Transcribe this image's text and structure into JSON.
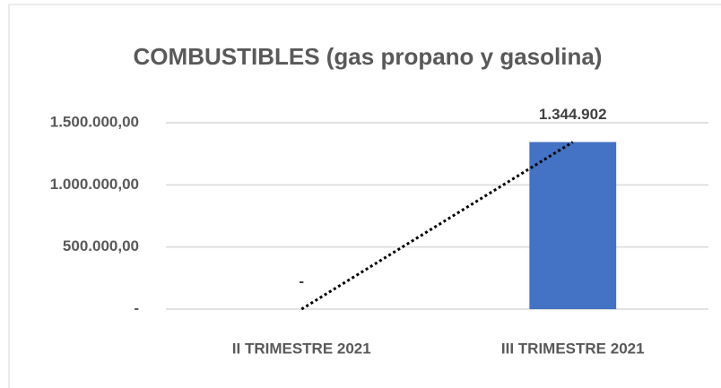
{
  "chart_data": {
    "type": "bar",
    "title": "COMBUSTIBLES (gas propano y gasolina)",
    "categories": [
      "II TRIMESTRE 2021",
      "III TRIMESTRE 2021"
    ],
    "values": [
      0,
      1344902
    ],
    "value_labels": [
      "-",
      "1.344.902"
    ],
    "color": "#4472c4",
    "ylim": [
      0,
      1500000
    ],
    "yticks": [
      {
        "value": 0,
        "label": "-"
      },
      {
        "value": 500000,
        "label": "500.000,00"
      },
      {
        "value": 1000000,
        "label": "1.000.000,00"
      },
      {
        "value": 1500000,
        "label": "1.500.000,00"
      }
    ],
    "grid": true,
    "trendline": "linear"
  }
}
